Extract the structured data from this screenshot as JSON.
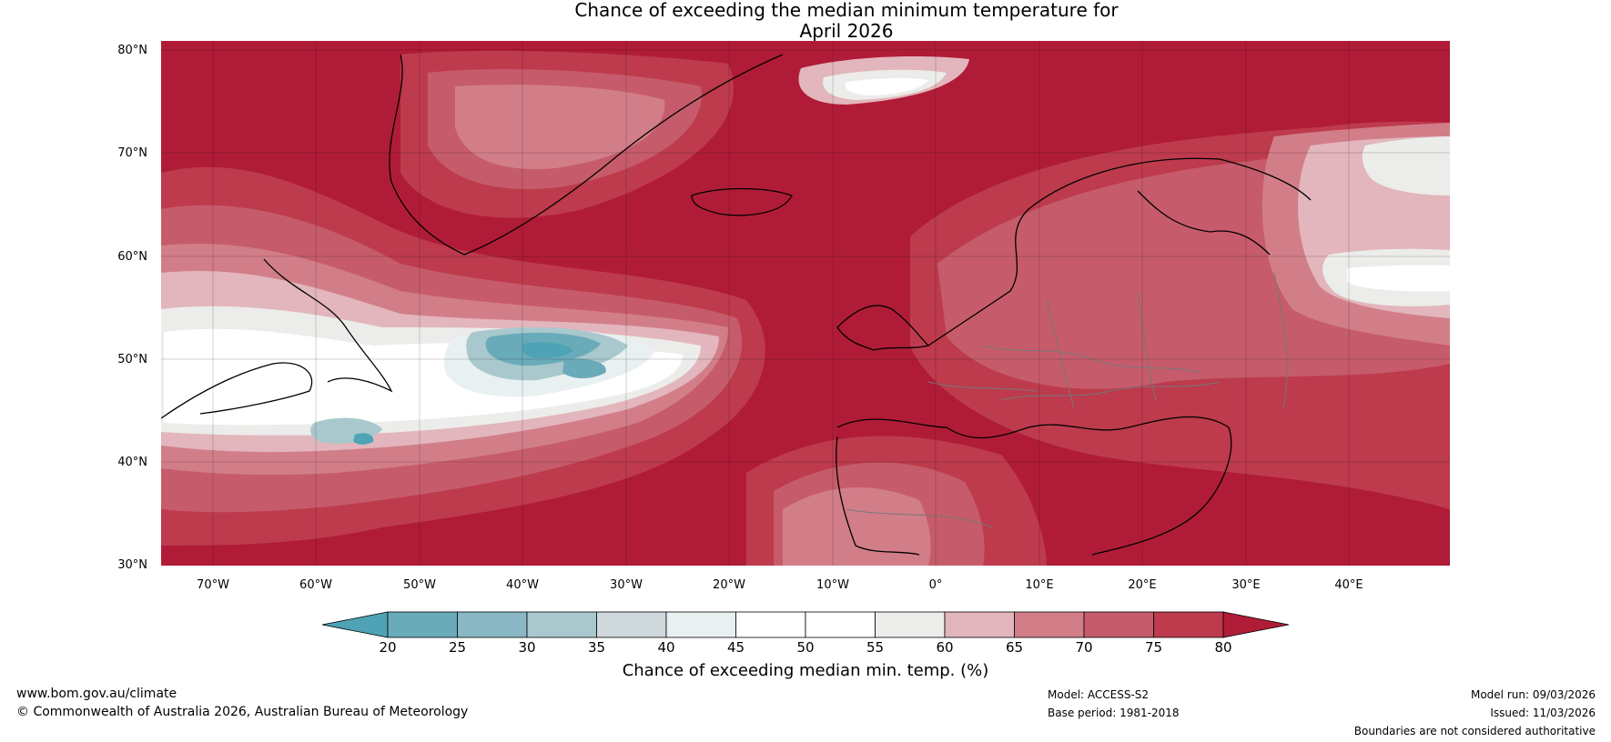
{
  "title": {
    "line1": "Chance of exceeding the median minimum temperature for",
    "line2": "April 2026"
  },
  "map": {
    "lat_labels": [
      "80°N",
      "70°N",
      "60°N",
      "50°N",
      "40°N",
      "30°N"
    ],
    "lon_labels": [
      "70°W",
      "60°W",
      "50°W",
      "40°W",
      "30°W",
      "20°W",
      "10°W",
      "0°",
      "10°E",
      "20°E",
      "30°E",
      "40°E"
    ],
    "extent": {
      "lon_min": -75,
      "lon_max": 50,
      "lat_min": 30,
      "lat_max": 81
    }
  },
  "colorbar": {
    "ticks": [
      "20",
      "25",
      "30",
      "35",
      "40",
      "45",
      "50",
      "55",
      "60",
      "65",
      "70",
      "75",
      "80"
    ],
    "colors": [
      "#4ea3b5",
      "#6aabba",
      "#89b8c4",
      "#a8c8cd",
      "#cfd9dc",
      "#e9f0f1",
      "#ffffff",
      "#ffffff",
      "#ececea",
      "#e2b6bc",
      "#d27e89",
      "#c65c6b",
      "#bd3b4d",
      "#b01c37"
    ],
    "label": "Chance of exceeding median min. temp. (%)"
  },
  "footer": {
    "website": "www.bom.gov.au/climate",
    "copyright": "© Commonwealth of Australia 2026, Australian Bureau of Meteorology",
    "model": "Model: ACCESS-S2",
    "base_period": "Base period: 1981-2018",
    "model_run": "Model run: 09/03/2026",
    "issued": "Issued: 11/03/2026",
    "disclaimer": "Boundaries are not considered authoritative"
  }
}
